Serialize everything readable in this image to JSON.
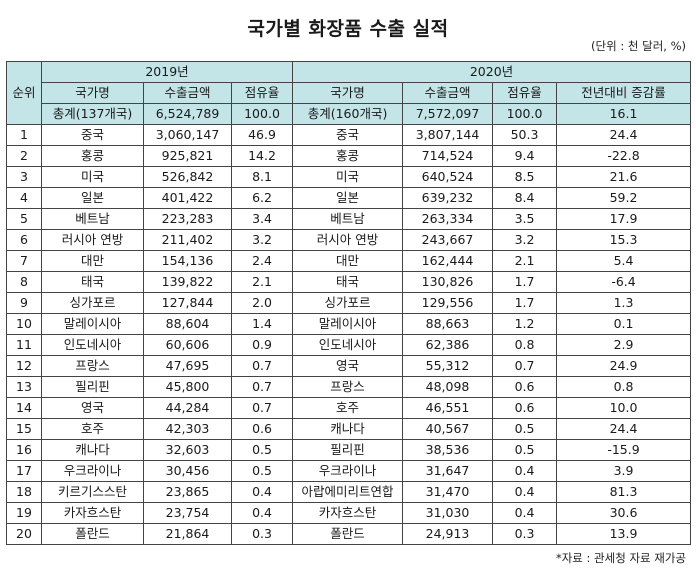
{
  "title": "국가별 화장품 수출 실적",
  "unit": "(단위 : 천 달러, %)",
  "headers": {
    "rank": "순위",
    "year2019": "2019년",
    "year2020": "2020년",
    "country": "국가명",
    "amount": "수출금액",
    "share": "점유율",
    "yoy": "전년대비 증감률"
  },
  "totals": {
    "c2019": "총계(137개국)",
    "a2019": "6,524,789",
    "s2019": "100.0",
    "c2020": "총계(160개국)",
    "a2020": "7,572,097",
    "s2020": "100.0",
    "yoy": "16.1"
  },
  "rows": [
    {
      "rank": "1",
      "c2019": "중국",
      "a2019": "3,060,147",
      "s2019": "46.9",
      "c2020": "중국",
      "a2020": "3,807,144",
      "s2020": "50.3",
      "yoy": "24.4"
    },
    {
      "rank": "2",
      "c2019": "홍콩",
      "a2019": "925,821",
      "s2019": "14.2",
      "c2020": "홍콩",
      "a2020": "714,524",
      "s2020": "9.4",
      "yoy": "-22.8"
    },
    {
      "rank": "3",
      "c2019": "미국",
      "a2019": "526,842",
      "s2019": "8.1",
      "c2020": "미국",
      "a2020": "640,524",
      "s2020": "8.5",
      "yoy": "21.6"
    },
    {
      "rank": "4",
      "c2019": "일본",
      "a2019": "401,422",
      "s2019": "6.2",
      "c2020": "일본",
      "a2020": "639,232",
      "s2020": "8.4",
      "yoy": "59.2"
    },
    {
      "rank": "5",
      "c2019": "베트남",
      "a2019": "223,283",
      "s2019": "3.4",
      "c2020": "베트남",
      "a2020": "263,334",
      "s2020": "3.5",
      "yoy": "17.9"
    },
    {
      "rank": "6",
      "c2019": "러시아 연방",
      "a2019": "211,402",
      "s2019": "3.2",
      "c2020": "러시아 연방",
      "a2020": "243,667",
      "s2020": "3.2",
      "yoy": "15.3"
    },
    {
      "rank": "7",
      "c2019": "대만",
      "a2019": "154,136",
      "s2019": "2.4",
      "c2020": "대만",
      "a2020": "162,444",
      "s2020": "2.1",
      "yoy": "5.4"
    },
    {
      "rank": "8",
      "c2019": "태국",
      "a2019": "139,822",
      "s2019": "2.1",
      "c2020": "태국",
      "a2020": "130,826",
      "s2020": "1.7",
      "yoy": "-6.4"
    },
    {
      "rank": "9",
      "c2019": "싱가포르",
      "a2019": "127,844",
      "s2019": "2.0",
      "c2020": "싱가포르",
      "a2020": "129,556",
      "s2020": "1.7",
      "yoy": "1.3"
    },
    {
      "rank": "10",
      "c2019": "말레이시아",
      "a2019": "88,604",
      "s2019": "1.4",
      "c2020": "말레이시아",
      "a2020": "88,663",
      "s2020": "1.2",
      "yoy": "0.1"
    },
    {
      "rank": "11",
      "c2019": "인도네시아",
      "a2019": "60,606",
      "s2019": "0.9",
      "c2020": "인도네시아",
      "a2020": "62,386",
      "s2020": "0.8",
      "yoy": "2.9"
    },
    {
      "rank": "12",
      "c2019": "프랑스",
      "a2019": "47,695",
      "s2019": "0.7",
      "c2020": "영국",
      "a2020": "55,312",
      "s2020": "0.7",
      "yoy": "24.9"
    },
    {
      "rank": "13",
      "c2019": "필리핀",
      "a2019": "45,800",
      "s2019": "0.7",
      "c2020": "프랑스",
      "a2020": "48,098",
      "s2020": "0.6",
      "yoy": "0.8"
    },
    {
      "rank": "14",
      "c2019": "영국",
      "a2019": "44,284",
      "s2019": "0.7",
      "c2020": "호주",
      "a2020": "46,551",
      "s2020": "0.6",
      "yoy": "10.0"
    },
    {
      "rank": "15",
      "c2019": "호주",
      "a2019": "42,303",
      "s2019": "0.6",
      "c2020": "캐나다",
      "a2020": "40,567",
      "s2020": "0.5",
      "yoy": "24.4"
    },
    {
      "rank": "16",
      "c2019": "캐나다",
      "a2019": "32,603",
      "s2019": "0.5",
      "c2020": "필리핀",
      "a2020": "38,536",
      "s2020": "0.5",
      "yoy": "-15.9"
    },
    {
      "rank": "17",
      "c2019": "우크라이나",
      "a2019": "30,456",
      "s2019": "0.5",
      "c2020": "우크라이나",
      "a2020": "31,647",
      "s2020": "0.4",
      "yoy": "3.9"
    },
    {
      "rank": "18",
      "c2019": "키르기스스탄",
      "a2019": "23,865",
      "s2019": "0.4",
      "c2020": "아랍에미리트연합",
      "a2020": "31,470",
      "s2020": "0.4",
      "yoy": "81.3"
    },
    {
      "rank": "19",
      "c2019": "카자흐스탄",
      "a2019": "23,754",
      "s2019": "0.4",
      "c2020": "카자흐스탄",
      "a2020": "31,030",
      "s2020": "0.4",
      "yoy": "30.6"
    },
    {
      "rank": "20",
      "c2019": "폴란드",
      "a2019": "21,864",
      "s2019": "0.3",
      "c2020": "폴란드",
      "a2020": "24,913",
      "s2020": "0.3",
      "yoy": "13.9"
    }
  ],
  "source": "*자료 : 관세청 자료 재가공",
  "colors": {
    "header_bg": "#c4e5e7",
    "border": "#444444"
  }
}
